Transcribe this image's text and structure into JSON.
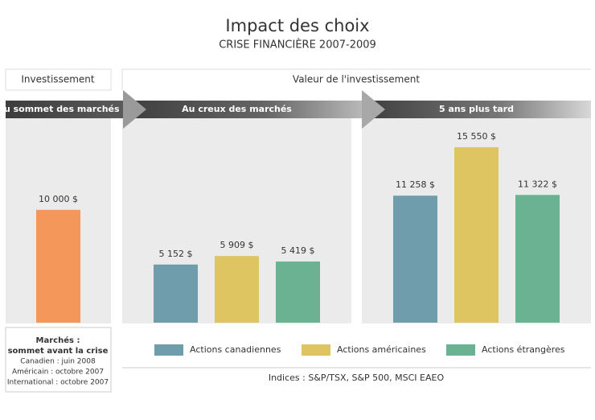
{
  "title": "Impact des choix",
  "subtitle": "CRISE FINANCIÈRE 2007-2009",
  "headers": {
    "investment": "Investissement",
    "value": "Valeur de l'investissement"
  },
  "chart_data": [
    {
      "type": "bar",
      "categories": [
        "Au sommet des marchés"
      ],
      "values": [
        10000
      ],
      "value_labels": [
        "10 000 $"
      ],
      "color": "#f4975a"
    },
    {
      "type": "bar",
      "categories": [
        "Au creux des marchés",
        "5 ans plus tard"
      ],
      "series": [
        {
          "name": "Actions canadiennes",
          "color": "#6f9dab",
          "values": [
            5152,
            11258
          ],
          "value_labels": [
            "5 152 $",
            "11 258 $"
          ]
        },
        {
          "name": "Actions américaines",
          "color": "#dfc462",
          "values": [
            5909,
            15550
          ],
          "value_labels": [
            "5 909 $",
            "15 550 $"
          ]
        },
        {
          "name": "Actions étrangères",
          "color": "#6bb293",
          "values": [
            5419,
            11322
          ],
          "value_labels": [
            "5 419 $",
            "11 322 $"
          ]
        }
      ]
    }
  ],
  "note": {
    "title": [
      "Marchés :",
      "sommet avant la crise"
    ],
    "lines": [
      "Canadien : juin 2008",
      "Américain : octobre 2007",
      "International : octobre 2007"
    ]
  },
  "source": "Indices : S&P/TSX, S&P 500, MSCI EAEO"
}
